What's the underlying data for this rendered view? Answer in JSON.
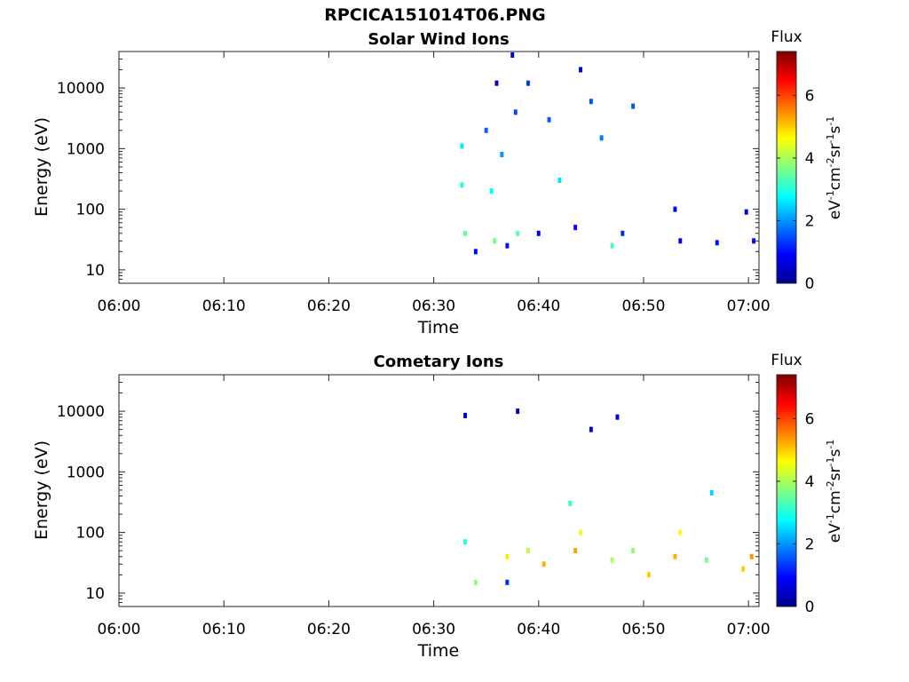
{
  "figure_title": "RPCICA151014T06.PNG",
  "colors": {
    "colormap": "jet",
    "colormap_stops": [
      "#00008f",
      "#0000ff",
      "#0080ff",
      "#00ffff",
      "#80ff80",
      "#ffff00",
      "#ff8000",
      "#ff0000",
      "#800000"
    ],
    "axis": "#262626",
    "background": "#ffffff"
  },
  "chart_data": [
    {
      "type": "heatmap",
      "title": "Solar Wind Ions",
      "xlabel": "Time",
      "ylabel": "Energy (eV)",
      "yscale": "log",
      "ylim": [
        6,
        40000
      ],
      "xlim": [
        "06:00",
        "07:01"
      ],
      "xticks": [
        "06:00",
        "06:10",
        "06:20",
        "06:30",
        "06:40",
        "06:50",
        "07:00"
      ],
      "yticks": [
        "10",
        "100",
        "1000",
        "10000"
      ],
      "colorbar": {
        "title": "Flux",
        "units": "eV-1cm-2sr-1s-1",
        "range": [
          0,
          7.4
        ],
        "ticks": [
          "0",
          "2",
          "4",
          "6"
        ]
      },
      "grid": false,
      "approximate_cells": [
        {
          "time": "06:32.7",
          "energy_eV": 1100,
          "flux": 2.6
        },
        {
          "time": "06:32.7",
          "energy_eV": 250,
          "flux": 3.0
        },
        {
          "time": "06:33.0",
          "energy_eV": 40,
          "flux": 3.5
        },
        {
          "time": "06:34.0",
          "energy_eV": 20,
          "flux": 0.8
        },
        {
          "time": "06:35.0",
          "energy_eV": 2000,
          "flux": 1.6
        },
        {
          "time": "06:35.5",
          "energy_eV": 200,
          "flux": 2.8
        },
        {
          "time": "06:35.8",
          "energy_eV": 30,
          "flux": 3.6
        },
        {
          "time": "06:36.0",
          "energy_eV": 12000,
          "flux": 0.4
        },
        {
          "time": "06:36.5",
          "energy_eV": 800,
          "flux": 2.0
        },
        {
          "time": "06:37.0",
          "energy_eV": 25,
          "flux": 1.0
        },
        {
          "time": "06:37.5",
          "energy_eV": 35000,
          "flux": 0.5
        },
        {
          "time": "06:37.8",
          "energy_eV": 4000,
          "flux": 1.4
        },
        {
          "time": "06:38.0",
          "energy_eV": 40,
          "flux": 3.4
        },
        {
          "time": "06:39.0",
          "energy_eV": 12000,
          "flux": 1.3
        },
        {
          "time": "06:40.0",
          "energy_eV": 40,
          "flux": 0.8
        },
        {
          "time": "06:41.0",
          "energy_eV": 3000,
          "flux": 1.6
        },
        {
          "time": "06:42.0",
          "energy_eV": 300,
          "flux": 2.6
        },
        {
          "time": "06:43.5",
          "energy_eV": 50,
          "flux": 0.9
        },
        {
          "time": "06:44.0",
          "energy_eV": 20000,
          "flux": 0.6
        },
        {
          "time": "06:45.0",
          "energy_eV": 6000,
          "flux": 1.5
        },
        {
          "time": "06:46.0",
          "energy_eV": 1500,
          "flux": 1.8
        },
        {
          "time": "06:47.0",
          "energy_eV": 25,
          "flux": 3.2
        },
        {
          "time": "06:48.0",
          "energy_eV": 40,
          "flux": 1.2
        },
        {
          "time": "06:49.0",
          "energy_eV": 5000,
          "flux": 1.5
        },
        {
          "time": "06:53.0",
          "energy_eV": 100,
          "flux": 0.9
        },
        {
          "time": "06:53.5",
          "energy_eV": 30,
          "flux": 0.6
        },
        {
          "time": "06:57.0",
          "energy_eV": 28,
          "flux": 1.0
        },
        {
          "time": "06:59.8",
          "energy_eV": 90,
          "flux": 0.8
        },
        {
          "time": "07:00.5",
          "energy_eV": 30,
          "flux": 1.0
        }
      ]
    },
    {
      "type": "heatmap",
      "title": "Cometary Ions",
      "xlabel": "Time",
      "ylabel": "Energy (eV)",
      "yscale": "log",
      "ylim": [
        6,
        40000
      ],
      "xlim": [
        "06:00",
        "07:01"
      ],
      "xticks": [
        "06:00",
        "06:10",
        "06:20",
        "06:30",
        "06:40",
        "06:50",
        "07:00"
      ],
      "yticks": [
        "10",
        "100",
        "1000",
        "10000"
      ],
      "colorbar": {
        "title": "Flux",
        "units": "eV-1cm-2sr-1s-1",
        "range": [
          0,
          7.4
        ],
        "ticks": [
          "0",
          "2",
          "4",
          "6"
        ]
      },
      "grid": false,
      "approximate_cells": [
        {
          "time": "06:33.0",
          "energy_eV": 8500,
          "flux": 0.5
        },
        {
          "time": "06:33.0",
          "energy_eV": 70,
          "flux": 3.0
        },
        {
          "time": "06:34.0",
          "energy_eV": 15,
          "flux": 3.8
        },
        {
          "time": "06:37.0",
          "energy_eV": 40,
          "flux": 4.8
        },
        {
          "time": "06:37.0",
          "energy_eV": 15,
          "flux": 1.2
        },
        {
          "time": "06:38.0",
          "energy_eV": 10000,
          "flux": 0.5
        },
        {
          "time": "06:39.0",
          "energy_eV": 50,
          "flux": 4.2
        },
        {
          "time": "06:40.5",
          "energy_eV": 30,
          "flux": 5.2
        },
        {
          "time": "06:43.0",
          "energy_eV": 300,
          "flux": 3.2
        },
        {
          "time": "06:43.5",
          "energy_eV": 50,
          "flux": 5.3
        },
        {
          "time": "06:44.0",
          "energy_eV": 100,
          "flux": 4.5
        },
        {
          "time": "06:45.0",
          "energy_eV": 5000,
          "flux": 0.5
        },
        {
          "time": "06:47.5",
          "energy_eV": 8000,
          "flux": 0.6
        },
        {
          "time": "06:47.0",
          "energy_eV": 35,
          "flux": 4.0
        },
        {
          "time": "06:49.0",
          "energy_eV": 50,
          "flux": 3.8
        },
        {
          "time": "06:50.5",
          "energy_eV": 20,
          "flux": 5.0
        },
        {
          "time": "06:53.0",
          "energy_eV": 40,
          "flux": 5.2
        },
        {
          "time": "06:53.5",
          "energy_eV": 100,
          "flux": 4.6
        },
        {
          "time": "06:56.0",
          "energy_eV": 35,
          "flux": 3.6
        },
        {
          "time": "06:56.5",
          "energy_eV": 450,
          "flux": 2.5
        },
        {
          "time": "06:59.5",
          "energy_eV": 25,
          "flux": 5.0
        },
        {
          "time": "07:00.3",
          "energy_eV": 40,
          "flux": 5.4
        }
      ]
    }
  ]
}
